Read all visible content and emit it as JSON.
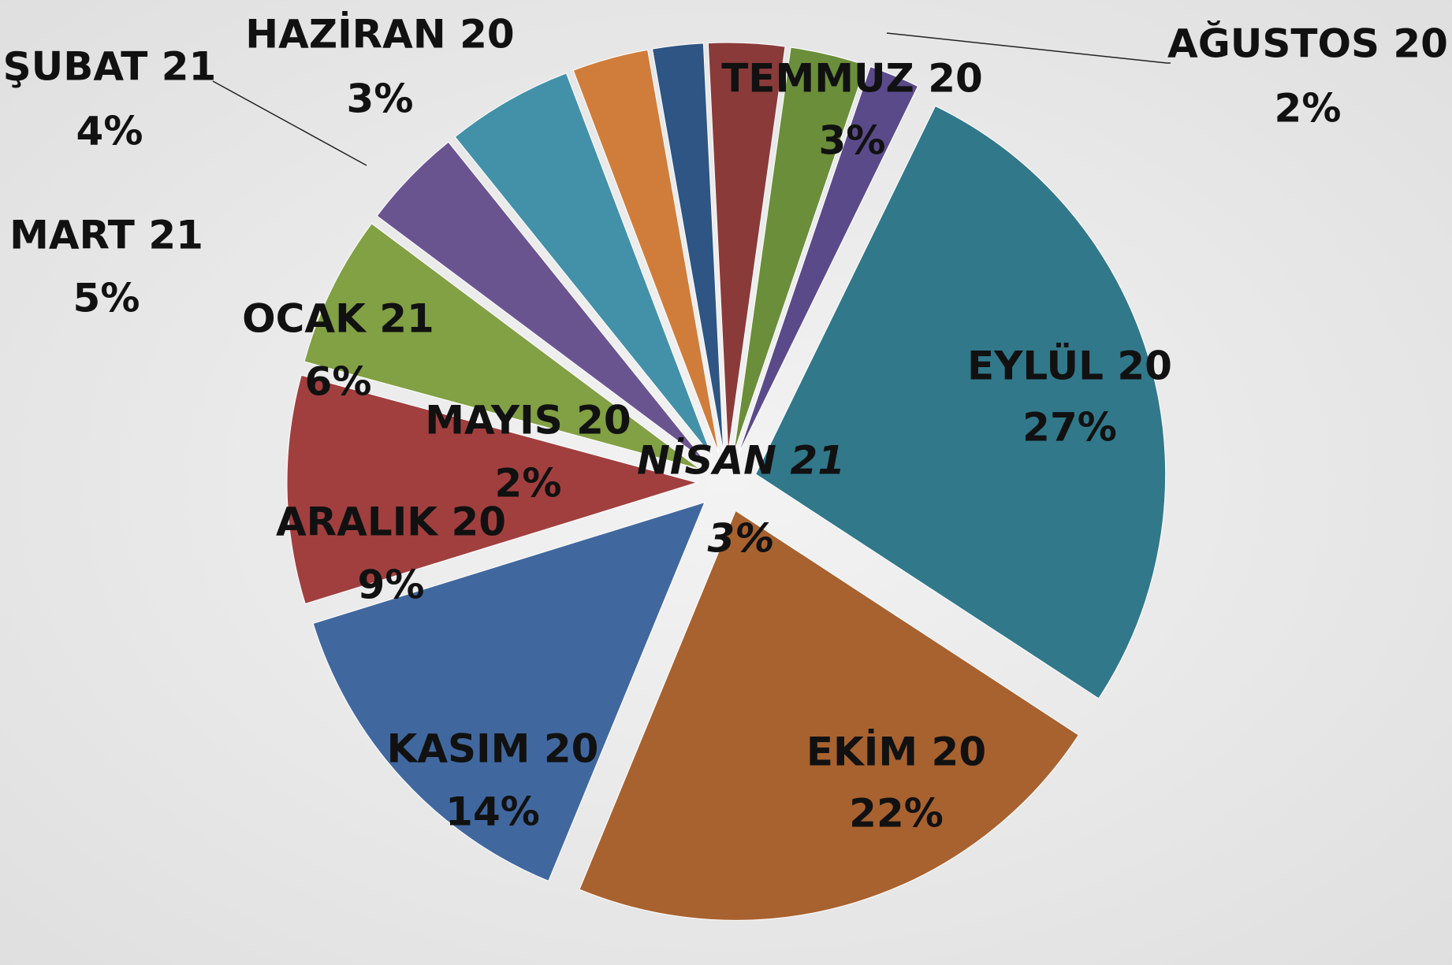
{
  "chart_data": {
    "type": "pie",
    "categories": [
      "MAYIS 20",
      "HAZİRAN 20",
      "TEMMUZ 20",
      "AĞUSTOS 20",
      "EYLÜL 20",
      "EKİM 20",
      "KASIM 20",
      "ARALIK 20",
      "OCAK 21",
      "ŞUBAT 21",
      "MART 21",
      "NİSAN 21"
    ],
    "values": [
      2,
      3,
      3,
      2,
      27,
      22,
      14,
      9,
      6,
      4,
      5,
      3
    ],
    "value_labels": [
      "2%",
      "3%",
      "3%",
      "2%",
      "27%",
      "22%",
      "14%",
      "9%",
      "6%",
      "4%",
      "5%",
      "3%"
    ],
    "colors": [
      "#2e5583",
      "#8b3a3a",
      "#6b8e3a",
      "#5b4a8a",
      "#31788a",
      "#a8622f",
      "#41689e",
      "#a13f3f",
      "#82a044",
      "#6a5490",
      "#4391a8",
      "#d07d3b"
    ]
  }
}
